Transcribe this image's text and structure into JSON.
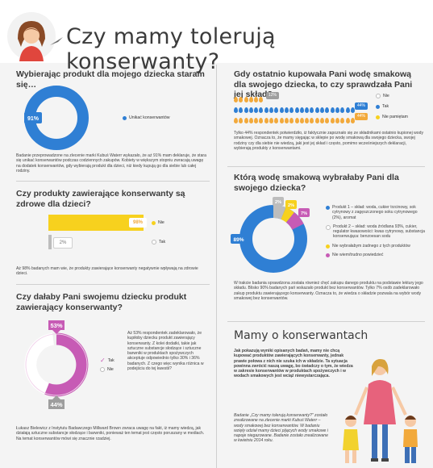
{
  "header": {
    "title": "Czy mamy tolerują konserwanty?"
  },
  "colors": {
    "blue": "#2f7fd4",
    "pink": "#c75bb5",
    "yellow": "#f7d11e",
    "orange": "#f2a93b",
    "grey": "#bdbdbd"
  },
  "q1": {
    "heading": "Wybierając produkt dla mojego dziecka staram się…",
    "pct": "91%",
    "legend": "Unikać konserwantów",
    "body": "Badanie przeprowadzone na zlecenie marki Kubuś Waterr wykazało, że aż 91% mam deklaruje, że stara się unikać konserwantów podczas codziennych zakupów. Kobiety w większym stopniu zwracają uwagę na dodatek konserwantów, gdy wybierają produkt dla dzieci, niż kiedy kupują go dla siebie lub całej rodziny."
  },
  "q2": {
    "heading": "Czy produkty zawierające konserwanty są zdrowe dla dzieci?",
    "bars": [
      {
        "pct": "98%",
        "label": "Nie"
      },
      {
        "pct": "2%",
        "label": "Tak"
      }
    ],
    "body": "Aż 98% badanych mam wie, że produkty zawierające konserwanty negatywnie wpływają na zdrowie dzieci."
  },
  "q3": {
    "heading": "Czy dałaby Pani swojemu dziecku produkt zawierający konserwanty?",
    "top_pct": "53%",
    "bottom_pct": "44%",
    "legend": [
      {
        "label": "Tak"
      },
      {
        "label": "Nie"
      }
    ],
    "side": "Aż 53% respondentek zadeklarowało, że kupiłoby dziecku produkt zawierający konserwanty. Z kolei dodatki, takie jak sztuczne substancje słodzące i sztuczne barwniki w produktach spożywczych akceptuje odpowiednio tylko 30% i 36% badanych. Z czego więc wynika różnica w podejściu do tej kwestii?",
    "body": "Łukasz Bielewicz z Instytutu Badawczego Millward Brown zwraca uwagę na fakt, iż mamy wiedzą, jak działają sztuczne substancje słodzące i barwniki, ponieważ ten temat jest często poruszany w mediach. Na temat konserwantów mówi się znacznie rzadziej."
  },
  "q4": {
    "heading": "Gdy ostatnio kupowała Pani wodę smakową dla swojego dziecka, to czy sprawdzała Pani jej skład?",
    "rows": [
      {
        "pct": "12%",
        "label": "Nie"
      },
      {
        "pct": "44%",
        "label": "Tak"
      },
      {
        "pct": "44%",
        "label": "Nie pamiętam"
      }
    ],
    "body": "Tylko 44% respondentek potwierdziło, iż faktycznie zapoznało się ze składnikami ostatnio kupionej wody smakowej. Oznacza to, że mamy sięgając w sklepie po wodę smakową dla swojego dziecka, swojej rodziny czy dla siebie nie wiedzą, jaki jest jej skład i często, pomimo wcześniejszych deklaracji, wybierają produkty z konserwantami."
  },
  "q5": {
    "heading": "Którą wodę smakową wybrałaby Pani dla swojego dziecka?",
    "pcts": {
      "blue": "89%",
      "grey": "2%",
      "yellow": "2%",
      "pink": "7%"
    },
    "legend": [
      {
        "label": "Produkt 1 – skład: woda, cukier trzcinowy, sok cytrynowy z zagęszczonego soku cytrynowego (2%), aromat"
      },
      {
        "label": "Produkt 2 – skład: woda źródlana 93%, cukier, regulator kwasowości: kwas cytrynowy, substancja konserwująca: benzoesan sodu"
      },
      {
        "label": "Nie wybrałabym żadnego z tych produktów"
      },
      {
        "label": "Nie wiem/trudno powiedzieć"
      }
    ],
    "body": "W trakcie badania sprawdzona została również chęć zakupu danego produktu na podstawie lektury jego składu. Blisko 90% badanych pań wskazało produkt bez konserwantów. Tylko 7% osób zadeklarowało zakup produktu zawierającego konserwanty. Oznacza to, że wiedza o składzie pozwala na wybór wody smakowej bez konserwantów."
  },
  "q6": {
    "heading": "Mamy o konserwantach",
    "bold": "Jak pokazują wyniki opisanych badań, mamy nie chcą kupować produktów zawierających konserwanty, jednak prawie połowa z nich nie szuka ich w składzie. Ta sytuacja powinna zwrócić naszą uwagę, bo świadczy o tym, że wiedza w zakresie konserwantów w produktach spożywczych i w wodach smakowych jest wciąż niewystarczająca.",
    "note": "Badanie „Czy mamy tolerują konserwanty?\" zostało zrealizowane na zlecenie marki Kubuś Waterr – wody smakowej bez konserwantów. W badaniu wzięły udział mamy dzieci pijących wody smakowe i napoje niegazowane. Badanie zostało zrealizowane w kwietniu 2014 roku."
  },
  "chart_data": [
    {
      "type": "pie",
      "title": "Wybierając produkt dla mojego dziecka staram się…",
      "categories": [
        "Unikać konserwantów",
        "—"
      ],
      "values": [
        91,
        9
      ]
    },
    {
      "type": "bar",
      "title": "Czy produkty zawierające konserwanty są zdrowe dla dzieci?",
      "categories": [
        "Nie",
        "Tak"
      ],
      "values": [
        98,
        2
      ]
    },
    {
      "type": "pie",
      "title": "Czy dałaby Pani swojemu dziecku produkt zawierający konserwanty?",
      "categories": [
        "Tak",
        "Nie"
      ],
      "values": [
        53,
        44
      ]
    },
    {
      "type": "bar",
      "title": "Gdy ostatnio kupowała Pani wodę smakową dla swojego dziecka, to czy sprawdzała Pani jej skład?",
      "categories": [
        "Nie",
        "Tak",
        "Nie pamiętam"
      ],
      "values": [
        12,
        44,
        44
      ]
    },
    {
      "type": "pie",
      "title": "Którą wodę smakową wybrałaby Pani dla swojego dziecka?",
      "categories": [
        "Produkt 1",
        "Produkt 2",
        "Nie wybrałabym żadnego z tych produktów",
        "Nie wiem/trudno powiedzieć"
      ],
      "values": [
        89,
        7,
        2,
        2
      ]
    }
  ]
}
